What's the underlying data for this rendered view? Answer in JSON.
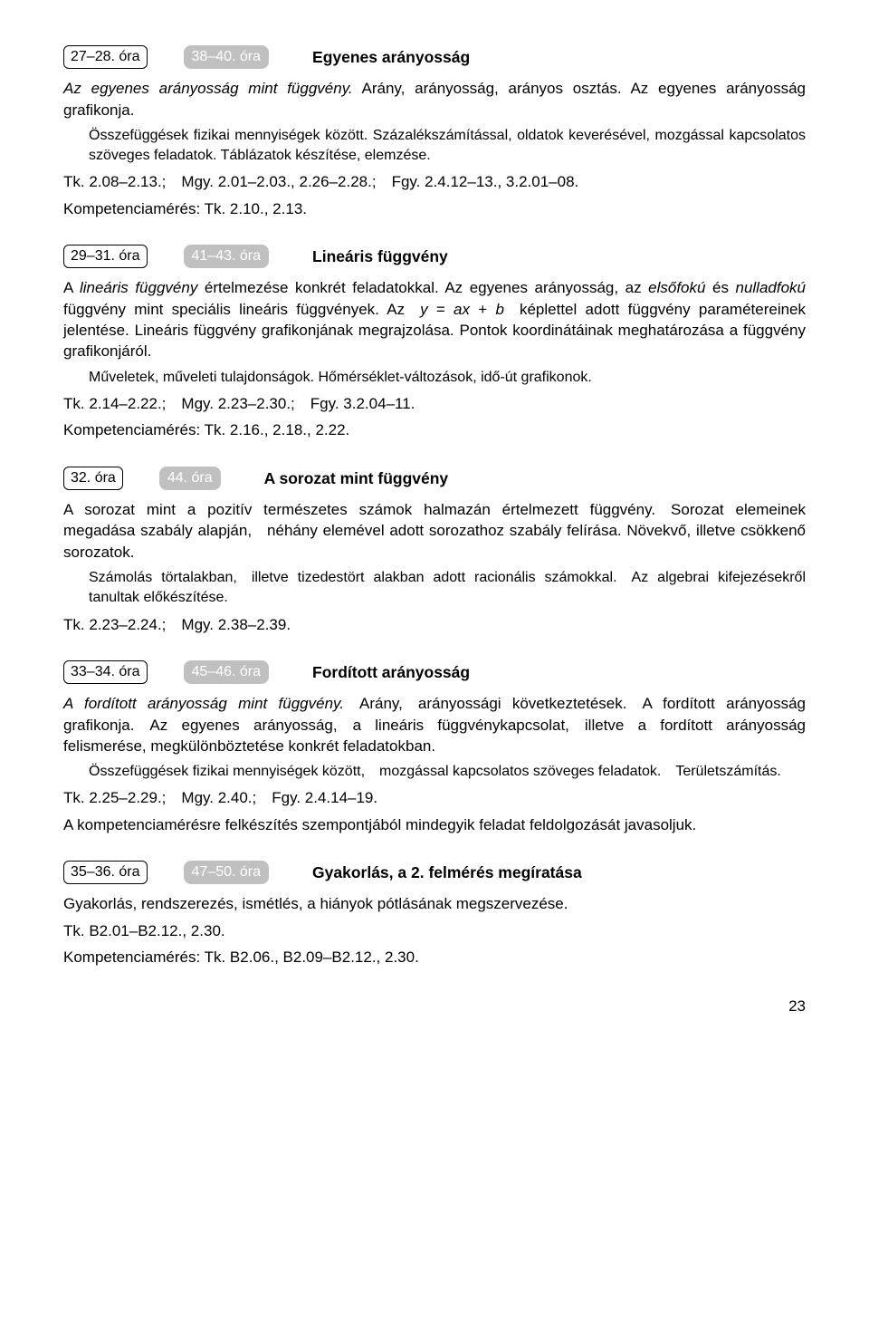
{
  "sections": [
    {
      "ora1": "27–28. óra",
      "ora2": "38–40. óra",
      "title": "Egyenes arányosság",
      "body_html": "<span class='italic'>Az egyenes arányosság mint függvény.</span> Arány, arányosság, arányos osztás. Az egyenes arányosság grafikonja.",
      "indent": "Összefüggések fizikai mennyiségek között. Százalékszámítással, oldatok keverésével, mozgással kapcsolatos szöveges feladatok. Táblázatok készítése, elemzése.",
      "refs": "Tk. 2.08–2.13.; Mgy. 2.01–2.03., 2.26–2.28.; Fgy. 2.4.12–13., 3.2.01–08.",
      "komp": "Kompetenciamérés: Tk. 2.10., 2.13."
    },
    {
      "ora1": "29–31. óra",
      "ora2": "41–43. óra",
      "title": "Lineáris függvény",
      "body_html": "A <span class='italic'>lineáris függvény</span> értelmezése konkrét feladatokkal. Az egyenes arányosság, az <span class='italic'>elsőfokú</span> és <span class='italic'>nulladfokú</span> függvény mint speciális lineáris függvények. Az <span class='italic'>y</span> = <span class='italic'>ax</span> + <span class='italic'>b</span> képlettel adott függvény paramétereinek jelentése. Lineáris függvény grafikonjának megrajzolása. Pontok koordinátáinak meghatározása a függvény grafikonjáról.",
      "indent": "Műveletek, műveleti tulajdonságok. Hőmérséklet-változások, idő-út grafikonok.",
      "refs": "Tk. 2.14–2.22.; Mgy. 2.23–2.30.; Fgy. 3.2.04–11.",
      "komp": "Kompetenciamérés: Tk. 2.16., 2.18., 2.22."
    },
    {
      "ora1": "32. óra",
      "ora2": "44. óra",
      "title": "A sorozat mint függvény",
      "body_html": "A sorozat mint a pozitív természetes számok halmazán értelmezett függvény. Sorozat elemeinek megadása szabály alapján, néhány elemével adott sorozathoz szabály felírása. Növekvő, illetve csökkenő sorozatok.",
      "indent": "Számolás törtalakban, illetve tizedestört alakban adott racionális számokkal. Az algebrai kifejezésekről tanultak előkészítése.",
      "refs": "Tk. 2.23–2.24.; Mgy. 2.38–2.39.",
      "komp": ""
    },
    {
      "ora1": "33–34. óra",
      "ora2": "45–46. óra",
      "title": "Fordított arányosság",
      "body_html": "<span class='italic'>A fordított arányosság mint függvény.</span> Arány, arányossági következtetések. A fordított arányosság grafikonja. Az egyenes arányosság, a lineáris függvénykapcsolat, illetve a fordított arányosság felismerése, megkülönböztetése konkrét feladatokban.",
      "indent": "Összefüggések fizikai mennyiségek között, mozgással kapcsolatos szöveges feladatok. Területszámítás.",
      "refs": "Tk. 2.25–2.29.; Mgy. 2.40.; Fgy. 2.4.14–19.",
      "komp": "A kompetenciamérésre felkészítés szempontjából mindegyik feladat feldolgozását javasoljuk."
    },
    {
      "ora1": "35–36. óra",
      "ora2": "47–50. óra",
      "title": "Gyakorlás, a 2. felmérés megíratása",
      "body_html": "Gyakorlás, rendszerezés, ismétlés, a hiányok pótlásának megszervezése.",
      "indent": "",
      "refs": "Tk. B2.01–B2.12., 2.30.",
      "komp": "Kompetenciamérés: Tk. B2.06., B2.09–B2.12., 2.30."
    }
  ],
  "page_number": "23"
}
